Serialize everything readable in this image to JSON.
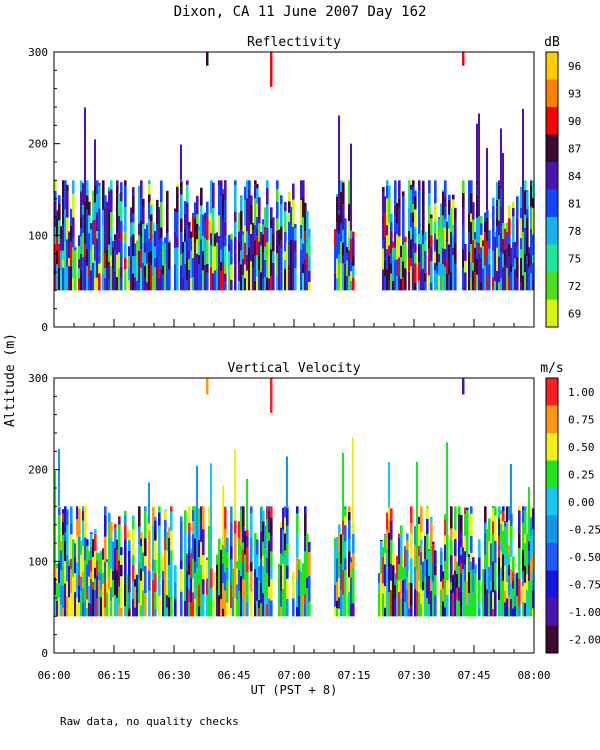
{
  "title": "Dixon, CA 11 June 2007  Day 162",
  "footnote": "Raw data, no quality checks",
  "ylabel": "Altitude (m)",
  "xlabel": "UT  (PST + 8)",
  "x_ticks": [
    "06:00",
    "06:15",
    "06:30",
    "06:45",
    "07:00",
    "07:15",
    "07:30",
    "07:45",
    "08:00"
  ],
  "chart_data": [
    {
      "type": "heatmap",
      "title": "Reflectivity",
      "xlabel": "UT  (PST + 8)",
      "ylabel": "Altitude (m)",
      "x_range": [
        "06:00",
        "08:00"
      ],
      "ylim": [
        0,
        300
      ],
      "y_ticks": [
        0,
        100,
        200,
        300
      ],
      "colorbar": {
        "unit": "dB",
        "tick_labels": [
          "69",
          "72",
          "75",
          "78",
          "81",
          "84",
          "87",
          "90",
          "93",
          "96"
        ],
        "colors": [
          "#d7f50a",
          "#4fe01e",
          "#1ee89b",
          "#14b4ee",
          "#1446ff",
          "#4a14b0",
          "#3a0a33",
          "#ff0000",
          "#ff8000",
          "#ffcc00"
        ]
      },
      "echo_band_m": [
        40,
        160
      ],
      "echo_gaps": [
        [
          "07:04",
          "07:10"
        ],
        [
          "07:15",
          "07:21"
        ]
      ],
      "isolated_echoes": [
        {
          "time": "06:38",
          "alt_range": [
            285,
            300
          ],
          "level": "87"
        },
        {
          "time": "06:54",
          "alt_range": [
            262,
            300
          ],
          "level": "90"
        },
        {
          "time": "07:42",
          "alt_range": [
            285,
            300
          ],
          "level": "90"
        }
      ]
    },
    {
      "type": "heatmap",
      "title": "Vertical Velocity",
      "xlabel": "UT  (PST + 8)",
      "ylabel": "Altitude (m)",
      "x_range": [
        "06:00",
        "08:00"
      ],
      "ylim": [
        0,
        300
      ],
      "y_ticks": [
        0,
        100,
        200,
        300
      ],
      "colorbar": {
        "unit": "m/s",
        "tick_labels": [
          "-2.00",
          "-1.00",
          "-0.75",
          "-0.50",
          "-0.25",
          "0.00",
          "0.25",
          "0.50",
          "0.75",
          "1.00"
        ],
        "colors": [
          "#3a0a33",
          "#4a14b0",
          "#1414e6",
          "#1e5aff",
          "#1496e6",
          "#14c8f0",
          "#1ee61e",
          "#f0f014",
          "#ff9614",
          "#ff1e1e"
        ]
      },
      "echo_band_m": [
        40,
        160
      ],
      "echo_gaps": [
        [
          "07:04",
          "07:10"
        ],
        [
          "07:15",
          "07:21"
        ]
      ],
      "isolated_echoes": [
        {
          "time": "06:38",
          "alt_range": [
            282,
            300
          ],
          "level": "0.75"
        },
        {
          "time": "06:54",
          "alt_range": [
            262,
            300
          ],
          "level": "1.00"
        },
        {
          "time": "07:42",
          "alt_range": [
            282,
            300
          ],
          "level": "-1.00"
        }
      ]
    }
  ]
}
